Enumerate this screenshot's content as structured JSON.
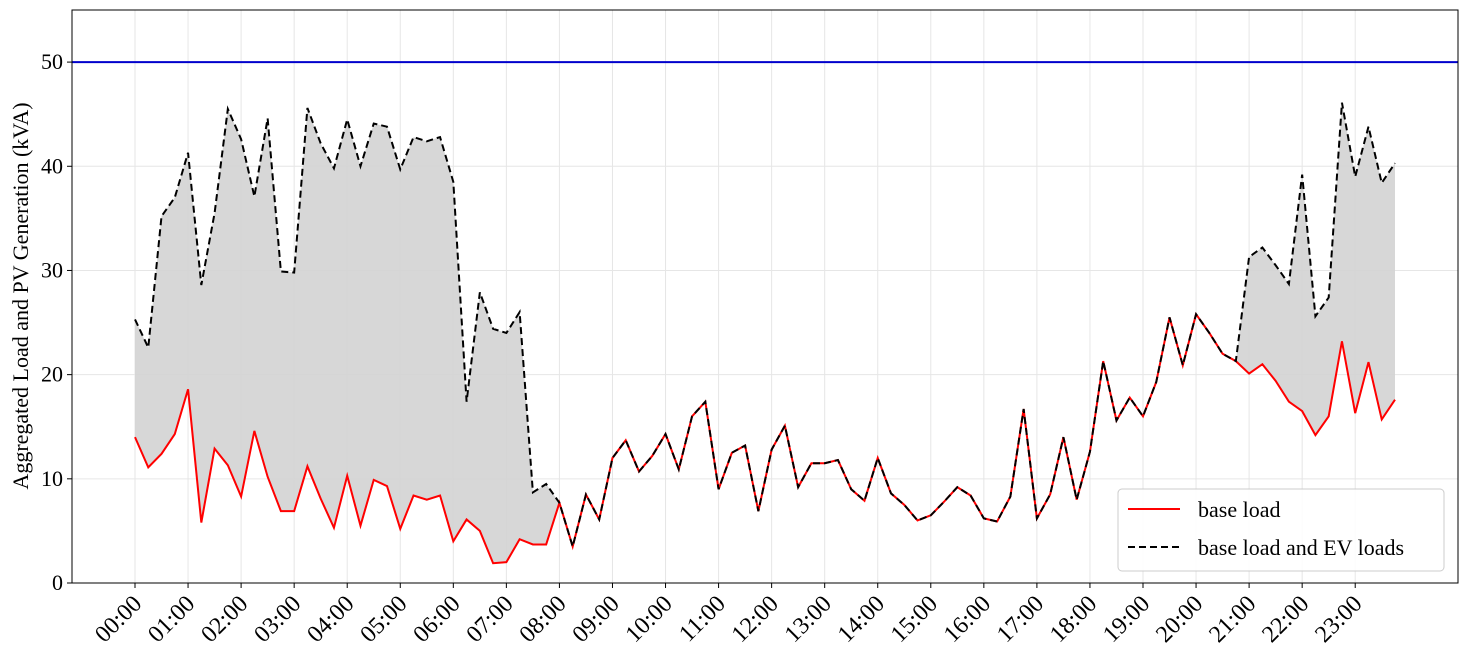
{
  "chart_data": {
    "type": "line",
    "y_label": "Aggregated Load and PV Generation (kVA)",
    "x": [
      0,
      0.25,
      0.5,
      0.75,
      1,
      1.25,
      1.5,
      1.75,
      2,
      2.25,
      2.5,
      2.75,
      3,
      3.25,
      3.5,
      3.75,
      4,
      4.25,
      4.5,
      4.75,
      5,
      5.25,
      5.5,
      5.75,
      6,
      6.25,
      6.5,
      6.75,
      7,
      7.25,
      7.5,
      7.75,
      8,
      8.25,
      8.5,
      8.75,
      9,
      9.25,
      9.5,
      9.75,
      10,
      10.25,
      10.5,
      10.75,
      11,
      11.25,
      11.5,
      11.75,
      12,
      12.25,
      12.5,
      12.75,
      13,
      13.25,
      13.5,
      13.75,
      14,
      14.25,
      14.5,
      14.75,
      15,
      15.25,
      15.5,
      15.75,
      16,
      16.25,
      16.5,
      16.75,
      17,
      17.25,
      17.5,
      17.75,
      18,
      18.25,
      18.5,
      18.75,
      19,
      19.25,
      19.5,
      19.75,
      20,
      20.25,
      20.5,
      20.75,
      21,
      21.25,
      21.5,
      21.75,
      22,
      22.25,
      22.5,
      22.75,
      23,
      23.25,
      23.5,
      23.75
    ],
    "series": [
      {
        "name": "base load",
        "color": "#ff0000",
        "dash": false,
        "values": [
          14.0,
          11.1,
          12.4,
          14.3,
          18.6,
          5.8,
          12.9,
          11.3,
          8.3,
          14.6,
          10.2,
          6.9,
          6.9,
          11.2,
          8.1,
          5.3,
          10.3,
          5.5,
          9.9,
          9.3,
          5.2,
          8.4,
          8.0,
          8.4,
          4.0,
          6.1,
          5.0,
          1.9,
          2.0,
          4.2,
          3.7,
          3.7,
          7.7,
          3.5,
          8.5,
          6.1,
          12.0,
          13.7,
          10.7,
          12.2,
          14.3,
          10.9,
          16.0,
          17.4,
          9.0,
          12.5,
          13.2,
          6.9,
          12.8,
          15.1,
          9.2,
          11.5,
          11.5,
          11.8,
          9.0,
          7.9,
          12.0,
          8.6,
          7.5,
          6.0,
          6.5,
          7.8,
          9.2,
          8.4,
          6.2,
          5.9,
          8.3,
          16.7,
          6.2,
          8.5,
          14.0,
          8.0,
          12.6,
          21.3,
          15.6,
          17.8,
          16.0,
          19.3,
          25.5,
          20.9,
          25.8,
          24.0,
          22.0,
          21.3,
          20.1,
          21.0,
          19.4,
          17.4,
          16.5,
          14.2,
          16.0,
          23.2,
          16.3,
          21.2,
          15.7,
          17.6
        ]
      },
      {
        "name": "base load and EV loads",
        "color": "#000000",
        "dash": true,
        "values": [
          25.3,
          22.6,
          35.2,
          37.0,
          41.3,
          28.6,
          35.5,
          45.5,
          42.6,
          37.1,
          44.6,
          29.9,
          29.8,
          45.6,
          42.2,
          39.8,
          44.5,
          40.0,
          44.1,
          43.8,
          39.7,
          42.8,
          42.4,
          42.8,
          38.5,
          17.4,
          27.9,
          24.4,
          24.0,
          26.0,
          8.7,
          9.5,
          7.7,
          3.5,
          8.5,
          6.1,
          12.0,
          13.7,
          10.7,
          12.2,
          14.3,
          10.9,
          16.0,
          17.4,
          9.0,
          12.5,
          13.2,
          6.9,
          12.8,
          15.1,
          9.2,
          11.5,
          11.5,
          11.8,
          9.0,
          7.9,
          12.0,
          8.6,
          7.5,
          6.0,
          6.5,
          7.8,
          9.2,
          8.4,
          6.2,
          5.9,
          8.3,
          16.7,
          6.2,
          8.5,
          14.0,
          8.0,
          12.6,
          21.3,
          15.6,
          17.8,
          16.0,
          19.3,
          25.5,
          20.9,
          25.8,
          24.0,
          22.0,
          21.3,
          31.3,
          32.2,
          30.5,
          28.7,
          39.2,
          25.6,
          27.4,
          46.1,
          39.0,
          43.8,
          38.4,
          40.3
        ]
      }
    ],
    "fill_between": {
      "color": "#d3d3d3"
    },
    "hline": {
      "value": 50,
      "color": "#0000cc"
    },
    "xlim": [
      -1.1875,
      24.9375
    ],
    "xticks": [
      {
        "value": 0,
        "label": "00:00"
      },
      {
        "value": 1,
        "label": "01:00"
      },
      {
        "value": 2,
        "label": "02:00"
      },
      {
        "value": 3,
        "label": "03:00"
      },
      {
        "value": 4,
        "label": "04:00"
      },
      {
        "value": 5,
        "label": "05:00"
      },
      {
        "value": 6,
        "label": "06:00"
      },
      {
        "value": 7,
        "label": "07:00"
      },
      {
        "value": 8,
        "label": "08:00"
      },
      {
        "value": 9,
        "label": "09:00"
      },
      {
        "value": 10,
        "label": "10:00"
      },
      {
        "value": 11,
        "label": "11:00"
      },
      {
        "value": 12,
        "label": "12:00"
      },
      {
        "value": 13,
        "label": "13:00"
      },
      {
        "value": 14,
        "label": "14:00"
      },
      {
        "value": 15,
        "label": "15:00"
      },
      {
        "value": 16,
        "label": "16:00"
      },
      {
        "value": 17,
        "label": "17:00"
      },
      {
        "value": 18,
        "label": "18:00"
      },
      {
        "value": 19,
        "label": "19:00"
      },
      {
        "value": 20,
        "label": "20:00"
      },
      {
        "value": 21,
        "label": "21:00"
      },
      {
        "value": 22,
        "label": "22:00"
      },
      {
        "value": 23,
        "label": "23:00"
      }
    ],
    "ylim": [
      0,
      55
    ],
    "yticks": [
      0,
      10,
      20,
      30,
      40,
      50
    ],
    "grid": true,
    "legend": "lower right"
  }
}
